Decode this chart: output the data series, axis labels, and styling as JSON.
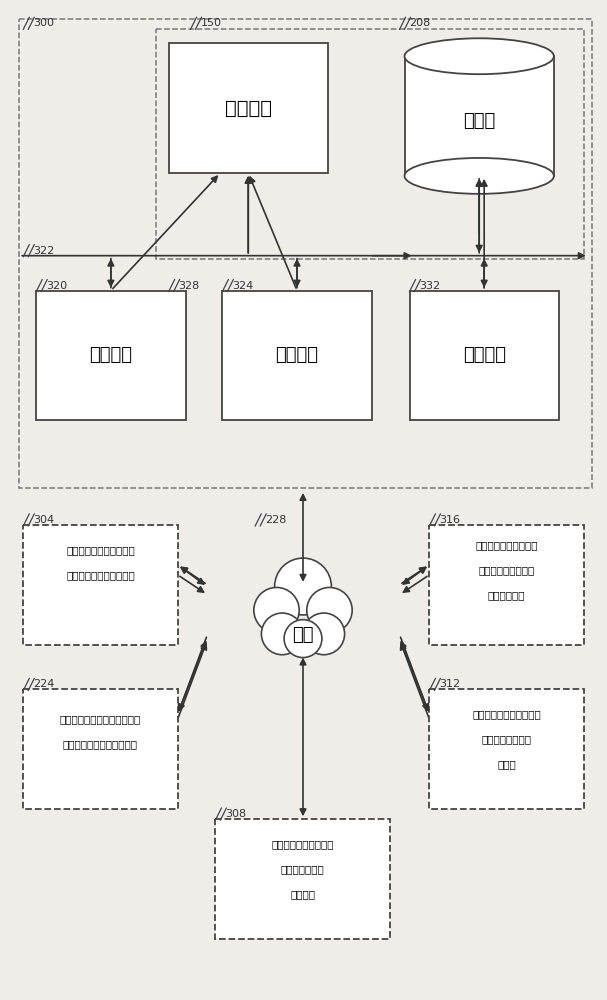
{
  "bg_color": "#f0ede8",
  "box_facecolor": "#ffffff",
  "box_edgecolor": "#444444",
  "dashed_edgecolor": "#666666",
  "labels": {
    "transport_module": "运输模块",
    "database": "数据库",
    "perspective_module": "透视模块",
    "exposure_module": "曝光模块",
    "security_module": "安全模块",
    "network": "网络",
    "search_engine_l1": "（一个或多个搜索引擎）",
    "search_engine_l2": "（一个或多个搜索引擎）",
    "third_party_l1": "（一个或多个可访问信息源）",
    "third_party_l2": "（一个或多个第三方信源）",
    "web_server_l1": "（一个或多个服务器）",
    "web_server_l2": "（一口服务器）",
    "web_server_l3": "（一器）",
    "monitoring_l1": "（一个或多个服务器）",
    "monitoring_l2": "（一个监控服务器）",
    "monitoring_l3": "（一个成员）",
    "comm_l1": "（一个或多个通信设备）",
    "comm_l2": "（一个通信设备）",
    "comm_l3": "（一）"
  }
}
